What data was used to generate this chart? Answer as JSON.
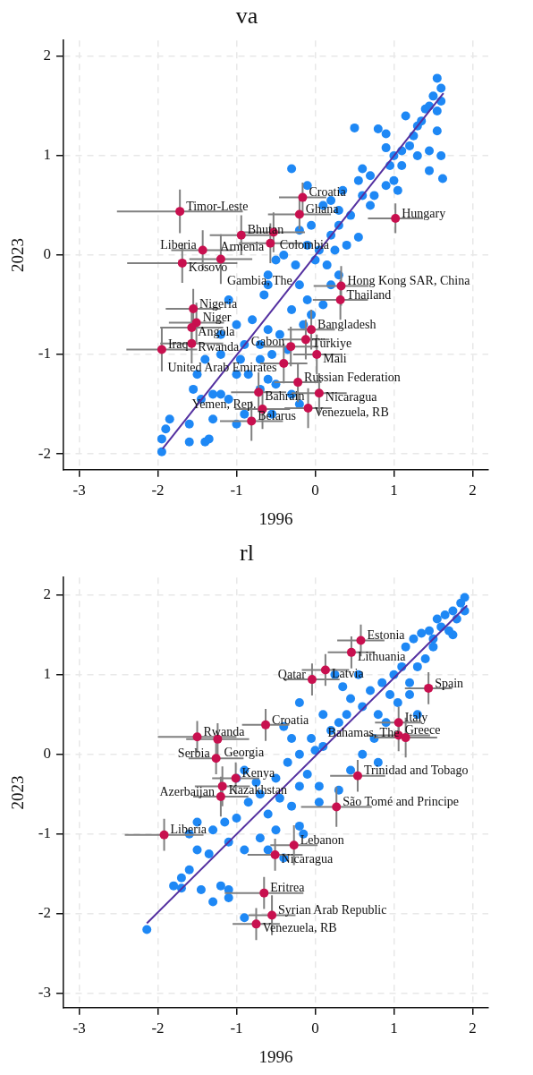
{
  "chart_data": [
    {
      "type": "scatter",
      "title": "va",
      "xlabel": "1996",
      "ylabel": "2023",
      "xlim": [
        -3.2,
        2.2
      ],
      "xticks": [
        -3,
        -2,
        -1,
        0,
        1,
        2
      ],
      "ylim": [
        -2.16,
        2.16
      ],
      "yticks": [
        -2,
        -1,
        0,
        1,
        2
      ],
      "grid": true,
      "legend": false,
      "series": [
        {
          "color": "#1e88f5",
          "marker": "circle",
          "x": [
            1.55,
            1.6,
            1.5,
            1.45,
            1.55,
            1.4,
            1.6,
            1.3,
            1.25,
            1.35,
            1.55,
            1.6,
            1.62,
            1.45,
            1.2,
            1.1,
            1.0,
            0.95,
            0.9,
            0.8,
            0.9,
            1.1,
            1.0,
            1.05,
            0.9,
            0.75,
            0.7,
            0.6,
            0.55,
            0.5,
            0.35,
            0.2,
            0.1,
            -0.1,
            -0.3,
            0.3,
            0.4,
            0.55,
            0.2,
            0.05,
            0,
            -0.1,
            -0.2,
            -0.05,
            0.15,
            -0.4,
            -0.5,
            -0.6,
            -0.6,
            -0.65,
            -0.2,
            -0.1,
            -0.05,
            0.1,
            0.2,
            -0.3,
            -0.6,
            -0.7,
            -0.9,
            -1.0,
            -1.2,
            -1.1,
            -0.8,
            -0.45,
            -0.35,
            -0.55,
            -0.7,
            -0.95,
            -1.2,
            -1.4,
            -1.5,
            -1.55,
            -1.45,
            -1.3,
            -1.2,
            -1.0,
            -0.85,
            -0.6,
            -0.5,
            -0.3,
            -0.2,
            -0.55,
            -1.1,
            -1.3,
            -1.6,
            -1.85,
            -1.9,
            -1.95,
            -1.95,
            -1.6,
            -1.4,
            -1.35,
            -1.0,
            -0.9,
            -0.7,
            0.3,
            0.7,
            0.45,
            0.25,
            -0.25,
            -0.15,
            0.3,
            0.6,
            1.3,
            1.15,
            1.45
          ],
          "values": [
            1.78,
            1.68,
            1.6,
            1.5,
            1.45,
            1.47,
            1.55,
            1.3,
            1.2,
            1.35,
            1.25,
            1.0,
            0.77,
            1.05,
            1.1,
            1.05,
            1.0,
            0.9,
            1.08,
            1.27,
            1.22,
            0.9,
            0.75,
            0.65,
            0.7,
            0.6,
            0.8,
            0.87,
            0.75,
            1.28,
            0.65,
            0.55,
            0.5,
            0.7,
            0.87,
            0.3,
            0.1,
            0.18,
            0.2,
            0.05,
            -0.05,
            0.1,
            0.25,
            0.3,
            -0.1,
            0.0,
            -0.05,
            -0.2,
            -0.3,
            -0.4,
            -0.3,
            -0.45,
            -0.6,
            -0.5,
            -0.3,
            -0.55,
            -0.75,
            -0.9,
            -0.9,
            -0.7,
            -0.8,
            -0.45,
            -0.65,
            -0.8,
            -0.95,
            -1.0,
            -1.05,
            -1.05,
            -1.0,
            -1.05,
            -1.2,
            -1.35,
            -1.45,
            -1.4,
            -1.4,
            -1.2,
            -1.2,
            -1.25,
            -1.3,
            -1.4,
            -1.5,
            -1.6,
            -1.45,
            -1.65,
            -1.7,
            -1.65,
            -1.75,
            -1.85,
            -1.98,
            -1.88,
            -1.88,
            -1.85,
            -1.7,
            -1.6,
            -1.35,
            0.45,
            0.5,
            0.4,
            0.05,
            -0.1,
            -0.7,
            -0.2,
            0.6,
            1.0,
            1.4,
            0.85
          ]
        },
        {
          "type": "line",
          "color": "#5430a0",
          "marker": "none",
          "x": [
            -1.94,
            1.63
          ],
          "values": [
            -1.95,
            1.63
          ]
        },
        {
          "color": "#c8104f",
          "marker": "circle",
          "x": [
            -1.72,
            -0.16,
            -0.2,
            1.02,
            -0.94,
            -0.53,
            -0.57,
            -1.43,
            -1.69,
            -1.2,
            0.33,
            0.32,
            -1.55,
            -1.51,
            -1.57,
            -1.57,
            -1.95,
            -0.05,
            -0.12,
            -0.31,
            0.02,
            -0.4,
            -0.22,
            -0.72,
            0.05,
            -0.09,
            -0.67,
            -0.81
          ],
          "values": [
            0.44,
            0.58,
            0.41,
            0.37,
            0.2,
            0.23,
            0.12,
            0.05,
            -0.08,
            -0.04,
            -0.31,
            -0.45,
            -0.54,
            -0.68,
            -0.73,
            -0.89,
            -0.95,
            -0.75,
            -0.85,
            -0.92,
            -1.0,
            -1.09,
            -1.28,
            -1.38,
            -1.39,
            -1.54,
            -1.55,
            -1.67
          ],
          "xerrors": [
            0.8,
            0.3,
            0.4,
            0.35,
            0.4,
            0.4,
            0.4,
            0.4,
            0.7,
            0.4,
            0.35,
            0.35,
            0.35,
            0.35,
            0.4,
            0.4,
            0.45,
            0.3,
            0.3,
            0.35,
            0.3,
            0.3,
            0.3,
            0.35,
            0.35,
            0.3,
            0.35,
            0.4
          ],
          "errors": [
            0.22,
            0.15,
            0.15,
            0.15,
            0.2,
            0.2,
            0.2,
            0.2,
            0.2,
            0.25,
            0.2,
            0.2,
            0.2,
            0.2,
            0.2,
            0.2,
            0.22,
            0.2,
            0.2,
            0.2,
            0.2,
            0.2,
            0.2,
            0.2,
            0.2,
            0.2,
            0.2,
            0.2
          ]
        }
      ],
      "annotations": [
        {
          "text": "Timor-Leste",
          "x": -1.72,
          "y": 0.44
        },
        {
          "text": "Croatia",
          "x": -0.16,
          "y": 0.58
        },
        {
          "text": "Ghana",
          "x": -0.2,
          "y": 0.41
        },
        {
          "text": "Hungary",
          "x": 1.02,
          "y": 0.37
        },
        {
          "text": "Bhutan",
          "x": -0.94,
          "y": 0.2
        },
        {
          "text": "Colombia",
          "x": -0.53,
          "y": 0.23
        },
        {
          "text": "Armenia",
          "x": -0.57,
          "y": 0.12
        },
        {
          "text": "Liberia",
          "x": -1.43,
          "y": 0.05
        },
        {
          "text": "Kosovo",
          "x": -1.69,
          "y": -0.08
        },
        {
          "text": "Gambia, The",
          "x": -1.2,
          "y": -0.04
        },
        {
          "text": "Hong Kong SAR, China",
          "x": 0.33,
          "y": -0.31
        },
        {
          "text": "Thailand",
          "x": 0.32,
          "y": -0.45
        },
        {
          "text": "Nigeria",
          "x": -1.55,
          "y": -0.54
        },
        {
          "text": "Niger",
          "x": -1.51,
          "y": -0.68
        },
        {
          "text": "Angola",
          "x": -1.57,
          "y": -0.73
        },
        {
          "text": "Rwanda",
          "x": -1.57,
          "y": -0.89
        },
        {
          "text": "Iraq",
          "x": -1.95,
          "y": -0.95
        },
        {
          "text": "Bangladesh",
          "x": -0.05,
          "y": -0.75
        },
        {
          "text": "Türkiye",
          "x": -0.12,
          "y": -0.85
        },
        {
          "text": "Gabon",
          "x": -0.31,
          "y": -0.92
        },
        {
          "text": "Mali",
          "x": 0.02,
          "y": -1.0
        },
        {
          "text": "United Arab Emirates",
          "x": -0.4,
          "y": -1.09
        },
        {
          "text": "Russian Federation",
          "x": -0.22,
          "y": -1.28
        },
        {
          "text": "Bahrain",
          "x": -0.72,
          "y": -1.38
        },
        {
          "text": "Nicaragua",
          "x": 0.05,
          "y": -1.39
        },
        {
          "text": "Venezuela, RB",
          "x": -0.09,
          "y": -1.54
        },
        {
          "text": "Yemen, Rep.",
          "x": -0.67,
          "y": -1.55
        },
        {
          "text": "Belarus",
          "x": -0.81,
          "y": -1.67
        }
      ]
    },
    {
      "type": "scatter",
      "title": "rl",
      "xlabel": "1996",
      "ylabel": "2023",
      "xlim": [
        -3.2,
        2.2
      ],
      "xticks": [
        -3,
        -2,
        -1,
        0,
        1,
        2
      ],
      "ylim": [
        -3.18,
        2.22
      ],
      "yticks": [
        -3,
        -2,
        -1,
        0,
        1,
        2
      ],
      "grid": true,
      "legend": false,
      "series": [
        {
          "color": "#1e88f5",
          "marker": "circle",
          "x": [
            1.9,
            1.85,
            1.75,
            1.8,
            1.65,
            1.55,
            1.6,
            1.45,
            1.35,
            1.5,
            1.25,
            1.15,
            1.7,
            1.9,
            1.4,
            1.3,
            1.1,
            1.0,
            0.85,
            0.7,
            0.95,
            1.2,
            1.3,
            0.9,
            0.75,
            0.8,
            0.6,
            0.45,
            0.35,
            0.25,
            0.4,
            0.2,
            0.1,
            0.0,
            -0.2,
            -0.35,
            -0.1,
            0.05,
            0.45,
            0.6,
            0.8,
            0.1,
            -0.2,
            -0.4,
            -0.3,
            -0.5,
            -0.7,
            -0.9,
            -0.85,
            -1.0,
            -1.15,
            -0.6,
            -0.45,
            -0.3,
            -0.2,
            -0.15,
            -0.5,
            -0.7,
            -0.9,
            -1.1,
            -1.3,
            -1.5,
            -1.6,
            -1.5,
            -1.35,
            -1.6,
            -1.7,
            -1.8,
            -1.7,
            -1.45,
            -1.1,
            -1.1,
            -0.9,
            -1.3,
            -2.14,
            -1.2,
            -0.6,
            -0.4,
            0.05,
            -0.2,
            0.3,
            1.05,
            1.2,
            1.5,
            1.75,
            0.55,
            0.3,
            -0.05,
            -1.0,
            -0.75
          ],
          "values": [
            1.97,
            1.9,
            1.8,
            1.7,
            1.75,
            1.7,
            1.6,
            1.55,
            1.52,
            1.45,
            1.45,
            1.35,
            1.55,
            1.8,
            1.2,
            1.1,
            1.1,
            1.0,
            0.9,
            0.8,
            0.75,
            0.75,
            0.5,
            0.4,
            0.2,
            0.5,
            0.6,
            0.7,
            0.85,
            1.0,
            0.5,
            0.3,
            0.1,
            0.05,
            0.0,
            -0.1,
            -0.25,
            -0.4,
            -0.2,
            0.0,
            -0.1,
            0.5,
            0.65,
            0.35,
            0.2,
            -0.3,
            -0.5,
            -0.2,
            -0.6,
            -0.8,
            -0.85,
            -0.75,
            -0.55,
            -0.65,
            -0.9,
            -1.0,
            -0.95,
            -1.05,
            -1.2,
            -1.1,
            -0.95,
            -0.85,
            -1.0,
            -1.2,
            -1.25,
            -1.45,
            -1.55,
            -1.65,
            -1.68,
            -1.7,
            -1.7,
            -1.8,
            -2.05,
            -1.85,
            -2.2,
            -1.65,
            -1.2,
            -1.3,
            -0.6,
            -0.4,
            -0.45,
            0.65,
            0.9,
            1.35,
            1.5,
            1.0,
            0.4,
            0.2,
            -0.3,
            -0.35
          ]
        },
        {
          "type": "line",
          "color": "#5430a0",
          "marker": "none",
          "x": [
            -2.14,
            1.93
          ],
          "values": [
            -2.12,
            1.87
          ]
        },
        {
          "color": "#c8104f",
          "marker": "circle",
          "x": [
            0.58,
            0.46,
            0.13,
            -0.04,
            1.44,
            -0.63,
            -1.5,
            -1.24,
            -1.26,
            1.06,
            1.06,
            1.15,
            0.54,
            -1.01,
            -1.18,
            -1.2,
            0.27,
            -1.92,
            -0.27,
            -0.51,
            -0.65,
            -0.55,
            -0.75
          ],
          "values": [
            1.43,
            1.28,
            1.06,
            0.94,
            0.83,
            0.37,
            0.22,
            0.19,
            -0.05,
            0.4,
            0.24,
            0.21,
            -0.27,
            -0.3,
            -0.4,
            -0.53,
            -0.66,
            -1.01,
            -1.14,
            -1.26,
            -1.74,
            -2.02,
            -2.13
          ],
          "xerrors": [
            0.3,
            0.3,
            0.3,
            0.35,
            0.3,
            0.3,
            0.5,
            0.4,
            0.35,
            0.3,
            0.4,
            0.4,
            0.35,
            0.3,
            0.35,
            0.35,
            0.45,
            0.5,
            0.3,
            0.35,
            0.5,
            0.3,
            0.3
          ],
          "errors": [
            0.2,
            0.2,
            0.2,
            0.2,
            0.2,
            0.2,
            0.2,
            0.2,
            0.2,
            0.2,
            0.2,
            0.25,
            0.2,
            0.2,
            0.25,
            0.25,
            0.25,
            0.2,
            0.25,
            0.2,
            0.2,
            0.25,
            0.2
          ]
        }
      ],
      "annotations": [
        {
          "text": "Estonia",
          "x": 0.58,
          "y": 1.43
        },
        {
          "text": "Lithuania",
          "x": 0.46,
          "y": 1.28
        },
        {
          "text": "Latvia",
          "x": 0.13,
          "y": 1.06
        },
        {
          "text": "Qatar",
          "x": -0.04,
          "y": 0.94
        },
        {
          "text": "Spain",
          "x": 1.44,
          "y": 0.83
        },
        {
          "text": "Croatia",
          "x": -0.63,
          "y": 0.37
        },
        {
          "text": "Rwanda",
          "x": -1.5,
          "y": 0.22
        },
        {
          "text": "Georgia",
          "x": -1.24,
          "y": 0.19
        },
        {
          "text": "Serbia",
          "x": -1.26,
          "y": -0.05
        },
        {
          "text": "Italy",
          "x": 1.06,
          "y": 0.4
        },
        {
          "text": "Greece",
          "x": 1.06,
          "y": 0.24
        },
        {
          "text": "Bahamas, The",
          "x": 1.15,
          "y": 0.21
        },
        {
          "text": "Trinidad and Tobago",
          "x": 0.54,
          "y": -0.27
        },
        {
          "text": "Kenya",
          "x": -1.01,
          "y": -0.3
        },
        {
          "text": "Kazakhstan",
          "x": -1.18,
          "y": -0.4
        },
        {
          "text": "Azerbaijan",
          "x": -1.2,
          "y": -0.53
        },
        {
          "text": "São Tomé and Principe",
          "x": 0.27,
          "y": -0.66
        },
        {
          "text": "Liberia",
          "x": -1.92,
          "y": -1.01
        },
        {
          "text": "Lebanon",
          "x": -0.27,
          "y": -1.14
        },
        {
          "text": "Nicaragua",
          "x": -0.51,
          "y": -1.26
        },
        {
          "text": "Eritrea",
          "x": -0.65,
          "y": -1.74
        },
        {
          "text": "Syrian Arab Republic",
          "x": -0.55,
          "y": -2.02
        },
        {
          "text": "Venezuela, RB",
          "x": -0.75,
          "y": -2.13
        }
      ]
    }
  ]
}
